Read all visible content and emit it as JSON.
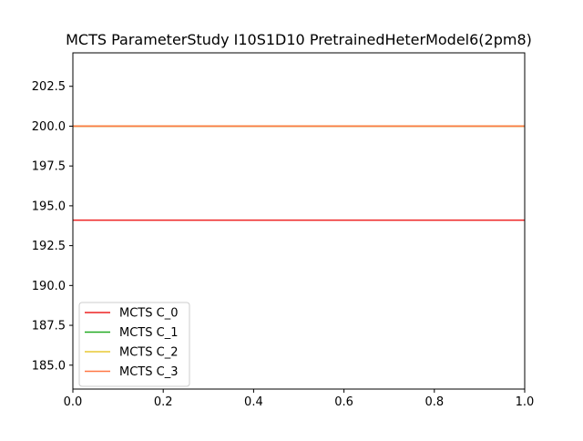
{
  "chart_data": {
    "type": "line",
    "title": "MCTS ParameterStudy I10S1D10 PretrainedHeterModel6(2pm8)",
    "xlabel": "",
    "ylabel": "",
    "xlim": [
      0.0,
      1.0
    ],
    "ylim": [
      183.5,
      204.6
    ],
    "x_ticks": [
      "0.0",
      "0.2",
      "0.4",
      "0.6",
      "0.8",
      "1.0"
    ],
    "x_tick_values": [
      0.0,
      0.2,
      0.4,
      0.6,
      0.8,
      1.0
    ],
    "y_ticks": [
      "185.0",
      "187.5",
      "190.0",
      "192.5",
      "195.0",
      "197.5",
      "200.0",
      "202.5"
    ],
    "y_tick_values": [
      185.0,
      187.5,
      190.0,
      192.5,
      195.0,
      197.5,
      200.0,
      202.5
    ],
    "grid": false,
    "legend_position": "lower-left",
    "series": [
      {
        "name": "MCTS C_0",
        "color": "#ee2222",
        "x": [
          0.0,
          1.0
        ],
        "y": [
          194.1,
          194.1
        ]
      },
      {
        "name": "MCTS C_1",
        "color": "#22aa22",
        "x": [
          0.0,
          1.0
        ],
        "y": [
          200.0,
          200.0
        ]
      },
      {
        "name": "MCTS C_2",
        "color": "#e8c833",
        "x": [
          0.0,
          1.0
        ],
        "y": [
          200.0,
          200.0
        ]
      },
      {
        "name": "MCTS C_3",
        "color": "#ff7744",
        "x": [
          0.0,
          1.0
        ],
        "y": [
          200.0,
          200.0
        ]
      }
    ]
  }
}
